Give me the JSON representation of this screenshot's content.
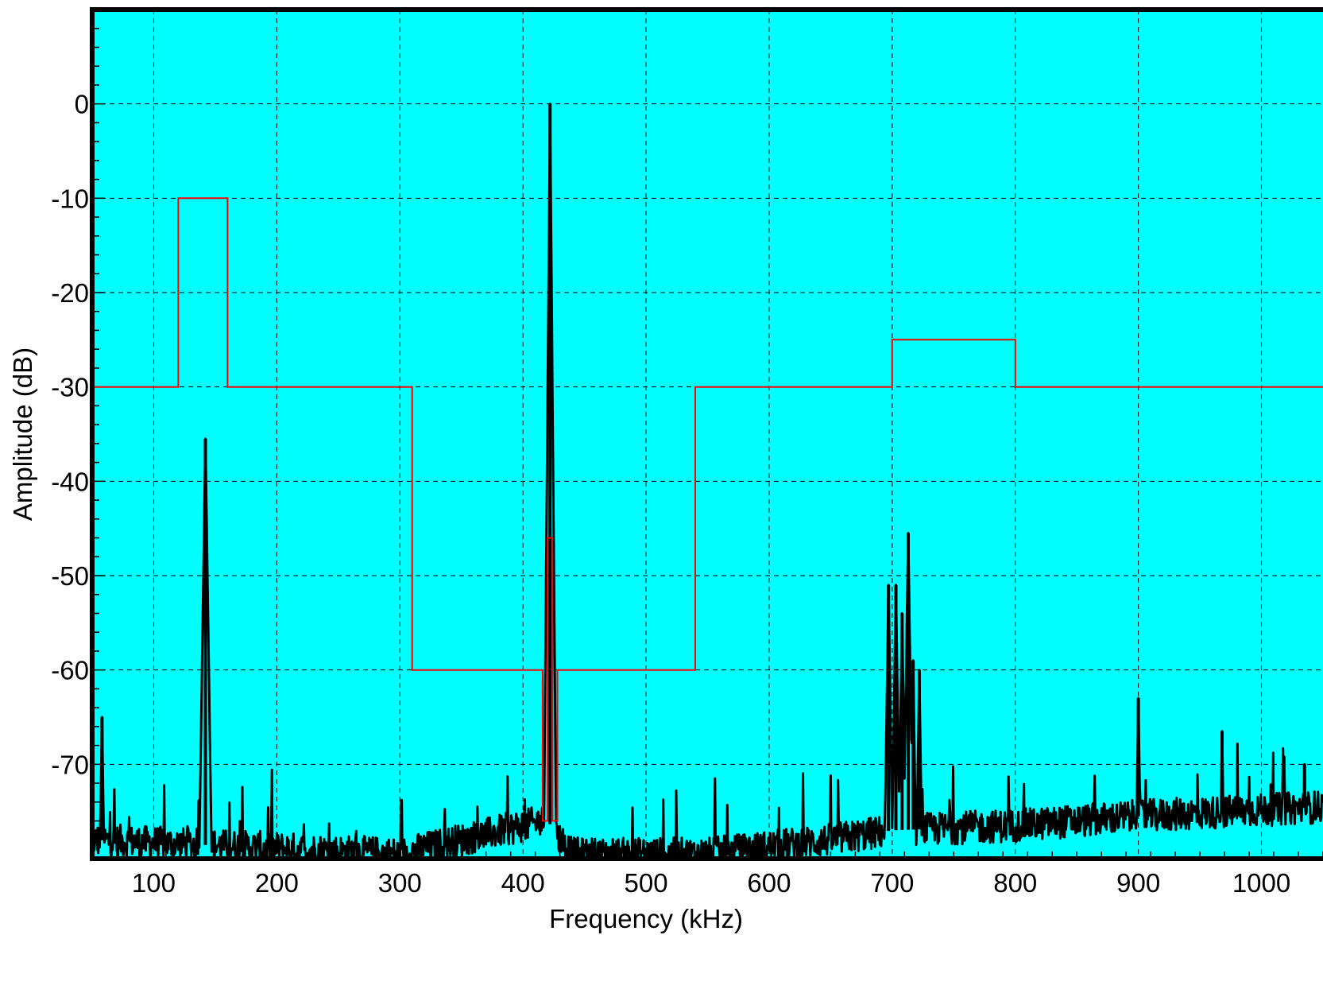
{
  "chart_data": {
    "type": "line",
    "title": "",
    "xlabel": "Frequency (kHz)",
    "ylabel": "Amplitude (dB)",
    "xlim": [
      50,
      1050
    ],
    "ylim": [
      -80,
      10
    ],
    "x_ticks": [
      100,
      200,
      300,
      400,
      500,
      600,
      700,
      800,
      900,
      1000
    ],
    "x_tick_labels": [
      "100",
      "200",
      "300",
      "400",
      "500",
      "600",
      "700",
      "800",
      "900",
      "1000"
    ],
    "y_ticks": [
      0,
      -10,
      -20,
      -30,
      -40,
      -50,
      -60,
      -70
    ],
    "y_tick_labels": [
      "0",
      "-10",
      "-20",
      "-30",
      "-40",
      "-50",
      "-60",
      "-70"
    ],
    "grid": true,
    "legend": "none",
    "colors": {
      "background": "#00ffff",
      "mask": "#ff0000",
      "spectrum": "#000000",
      "grid": "#000000"
    },
    "series": [
      {
        "style": "step",
        "color": "#ff0000",
        "x": [
          50,
          120,
          120,
          160,
          160,
          310,
          310,
          416,
          416,
          420,
          420,
          424,
          424,
          428,
          428,
          540,
          540,
          700,
          700,
          800,
          800,
          1050
        ],
        "values": [
          -30,
          -30,
          -10,
          -10,
          -30,
          -30,
          -60,
          -60,
          -76,
          -76,
          -46,
          -46,
          -76,
          -76,
          -60,
          -60,
          -30,
          -30,
          -25,
          -25,
          -30,
          -30
        ]
      },
      {
        "style": "spectrum",
        "color": "#000000",
        "noise_floor": [
          [
            50,
            -78
          ],
          [
            300,
            -79.5
          ],
          [
            350,
            -78
          ],
          [
            400,
            -76.5
          ],
          [
            420,
            -76
          ],
          [
            440,
            -79.5
          ],
          [
            550,
            -79.5
          ],
          [
            650,
            -78
          ],
          [
            700,
            -77
          ],
          [
            800,
            -76.5
          ],
          [
            900,
            -75.5
          ],
          [
            1050,
            -74.5
          ]
        ],
        "peaks": [
          {
            "x": 58,
            "values": -65
          },
          {
            "x": 142,
            "values": -35.5
          },
          {
            "x": 422,
            "values": 0
          },
          {
            "x": 697,
            "values": -51
          },
          {
            "x": 703,
            "values": -51
          },
          {
            "x": 708,
            "values": -54
          },
          {
            "x": 713,
            "values": -45.5
          },
          {
            "x": 717,
            "values": -59
          },
          {
            "x": 722,
            "values": -60
          },
          {
            "x": 900,
            "values": -63
          },
          {
            "x": 968,
            "values": -66.5
          },
          {
            "x": 1035,
            "values": -70
          }
        ]
      }
    ]
  }
}
